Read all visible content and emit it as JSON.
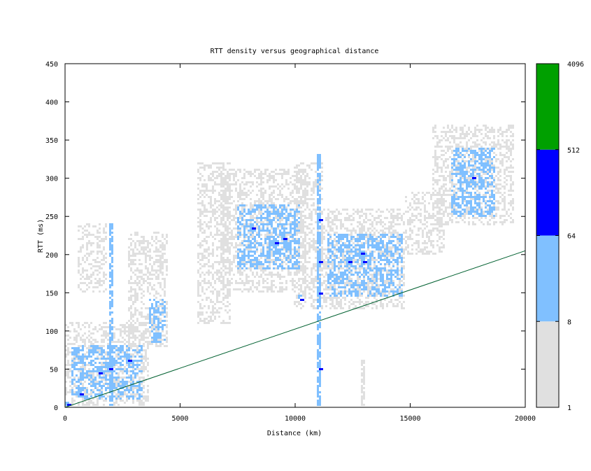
{
  "chart_data": {
    "type": "heatmap",
    "title": "RTT density versus geographical distance",
    "xlabel": "Distance (km)",
    "ylabel": "RTT (ms)",
    "xlim": [
      0,
      20000
    ],
    "ylim": [
      0,
      450
    ],
    "x_ticks": [
      "0",
      "5000",
      "10000",
      "15000",
      "20000"
    ],
    "y_ticks": [
      "0",
      "50",
      "100",
      "150",
      "200",
      "250",
      "300",
      "350",
      "400",
      "450"
    ],
    "colorbar": {
      "scale": "log",
      "labels": [
        "1",
        "8",
        "64",
        "512",
        "4096"
      ],
      "bins": [
        {
          "from": 1,
          "to": 8,
          "color": "#e0e0e0"
        },
        {
          "from": 8,
          "to": 64,
          "color": "#80c0ff"
        },
        {
          "from": 64,
          "to": 512,
          "color": "#0000ff"
        },
        {
          "from": 512,
          "to": 4096,
          "color": "#00a000"
        }
      ]
    },
    "reference_line": {
      "color": "#006030",
      "points": [
        [
          0,
          0
        ],
        [
          20000,
          205
        ]
      ]
    },
    "density_regions": [
      {
        "x": [
          0,
          3600
        ],
        "y": [
          0,
          110
        ],
        "level": 1
      },
      {
        "x": [
          300,
          3400
        ],
        "y": [
          10,
          80
        ],
        "level": 2
      },
      {
        "x": [
          600,
          1800
        ],
        "y": [
          150,
          240
        ],
        "level": 1
      },
      {
        "x": [
          2800,
          4500
        ],
        "y": [
          80,
          230
        ],
        "level": 1
      },
      {
        "x": [
          3700,
          4400
        ],
        "y": [
          85,
          140
        ],
        "level": 2
      },
      {
        "x": [
          5800,
          7200
        ],
        "y": [
          110,
          320
        ],
        "level": 1
      },
      {
        "x": [
          6800,
          10500
        ],
        "y": [
          150,
          310
        ],
        "level": 1
      },
      {
        "x": [
          7500,
          10200
        ],
        "y": [
          180,
          265
        ],
        "level": 2
      },
      {
        "x": [
          10000,
          11200
        ],
        "y": [
          130,
          320
        ],
        "level": 1
      },
      {
        "x": [
          11200,
          14800
        ],
        "y": [
          130,
          260
        ],
        "level": 1
      },
      {
        "x": [
          11400,
          14600
        ],
        "y": [
          145,
          225
        ],
        "level": 2
      },
      {
        "x": [
          14800,
          16500
        ],
        "y": [
          200,
          280
        ],
        "level": 1
      },
      {
        "x": [
          16000,
          19500
        ],
        "y": [
          240,
          370
        ],
        "level": 1
      },
      {
        "x": [
          16800,
          18700
        ],
        "y": [
          250,
          340
        ],
        "level": 2
      }
    ],
    "dense_columns": [
      {
        "x": 2000,
        "y": [
          0,
          240
        ],
        "level": 2
      },
      {
        "x": 11050,
        "y": [
          0,
          330
        ],
        "level": 2
      },
      {
        "x": 13000,
        "y": [
          0,
          60
        ],
        "level": 1
      }
    ],
    "hot_spots": [
      {
        "x": 100,
        "y": 2,
        "level": 3
      },
      {
        "x": 700,
        "y": 18,
        "level": 3
      },
      {
        "x": 1500,
        "y": 45,
        "level": 3
      },
      {
        "x": 2000,
        "y": 50,
        "level": 3
      },
      {
        "x": 2800,
        "y": 62,
        "level": 3
      },
      {
        "x": 8200,
        "y": 235,
        "level": 3
      },
      {
        "x": 9200,
        "y": 215,
        "level": 3
      },
      {
        "x": 9500,
        "y": 220,
        "level": 3
      },
      {
        "x": 11050,
        "y": 245,
        "level": 3
      },
      {
        "x": 11050,
        "y": 190,
        "level": 3
      },
      {
        "x": 11050,
        "y": 150,
        "level": 3
      },
      {
        "x": 11050,
        "y": 50,
        "level": 3
      },
      {
        "x": 12400,
        "y": 190,
        "level": 3
      },
      {
        "x": 12900,
        "y": 200,
        "level": 3
      },
      {
        "x": 13000,
        "y": 190,
        "level": 3
      },
      {
        "x": 17700,
        "y": 300,
        "level": 3
      },
      {
        "x": 10300,
        "y": 140,
        "level": 3
      }
    ]
  }
}
